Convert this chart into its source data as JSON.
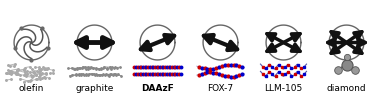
{
  "labels": [
    "olefin",
    "graphite",
    "DAAzF",
    "FOX-7",
    "LLM-105",
    "diamond"
  ],
  "label_fontsize": 6.5,
  "bg_color": "#ffffff",
  "circle_color": "#666666",
  "arrow_color": "#111111",
  "fig_width": 3.78,
  "fig_height": 1.02,
  "n_panels": 6
}
